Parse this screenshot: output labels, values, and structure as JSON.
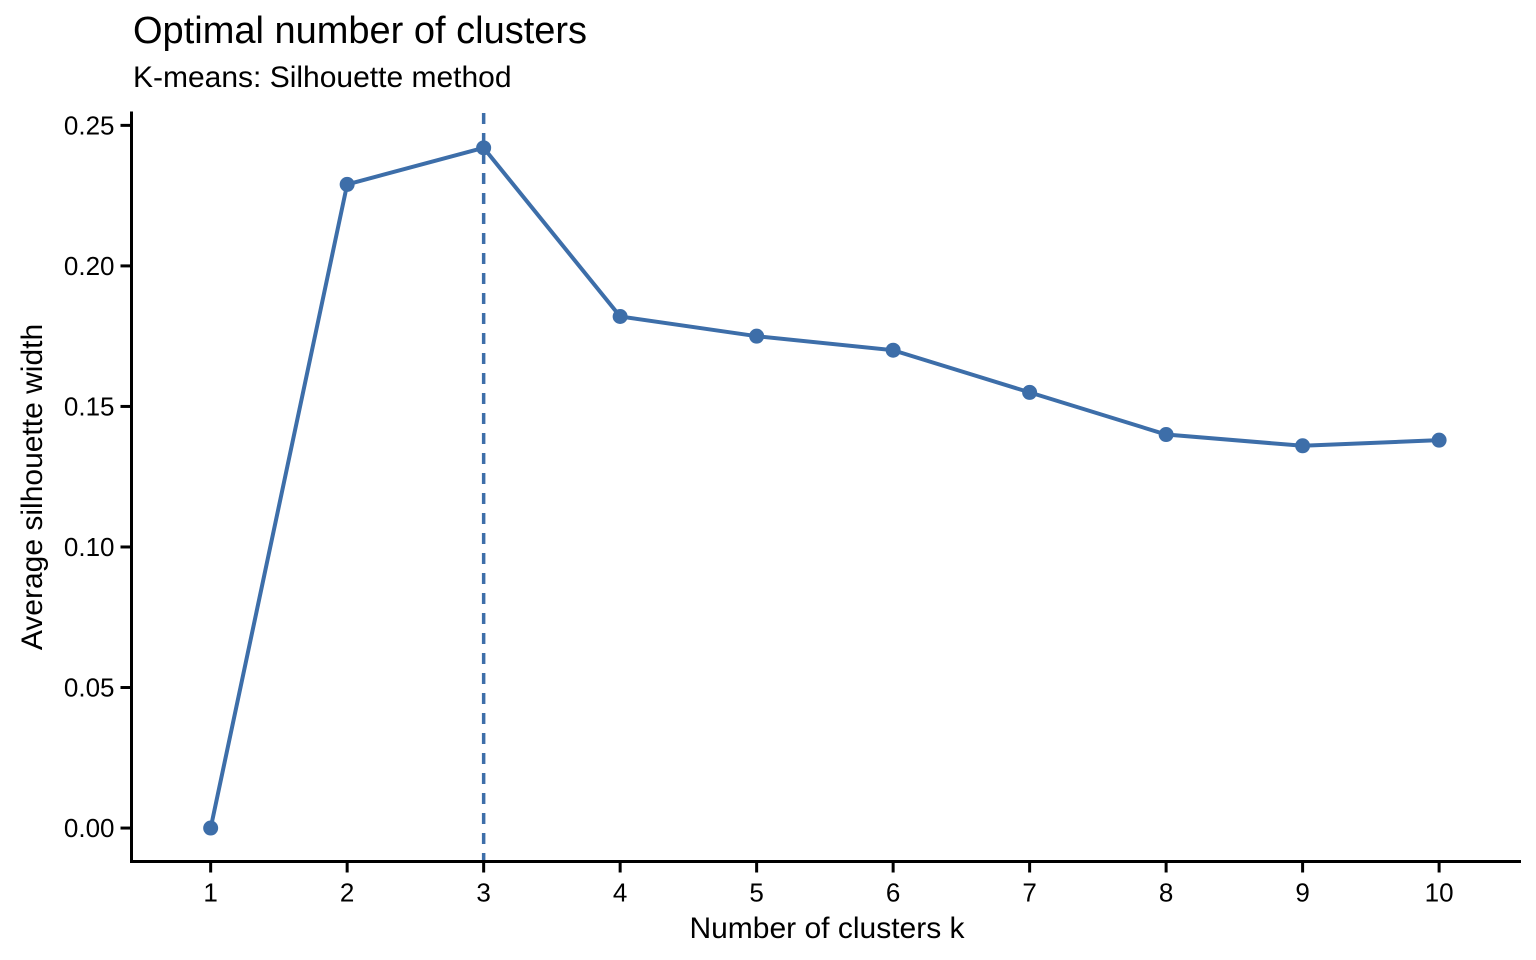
{
  "colors": {
    "series": "#3D6EA9",
    "axis": "#000000",
    "text": "#000000",
    "background": "#FFFFFF"
  },
  "chart_data": {
    "type": "line",
    "title": "Optimal number of clusters",
    "subtitle": "K-means: Silhouette method",
    "xlabel": "Number of clusters k",
    "ylabel": "Average silhouette width",
    "x": [
      1,
      2,
      3,
      4,
      5,
      6,
      7,
      8,
      9,
      10
    ],
    "values": [
      0.0,
      0.229,
      0.242,
      0.182,
      0.175,
      0.17,
      0.155,
      0.14,
      0.136,
      0.138
    ],
    "x_ticks": [
      "1",
      "2",
      "3",
      "4",
      "5",
      "6",
      "7",
      "8",
      "9",
      "10"
    ],
    "y_ticks": [
      "0.00",
      "0.05",
      "0.10",
      "0.15",
      "0.20",
      "0.25"
    ],
    "xlim": [
      0.42,
      10.6
    ],
    "ylim": [
      -0.0119,
      0.2544
    ],
    "optimal_k": 3,
    "vline_x": 3,
    "vline_style": "dashed",
    "marker": "circle",
    "grid": false,
    "legend": "none"
  }
}
